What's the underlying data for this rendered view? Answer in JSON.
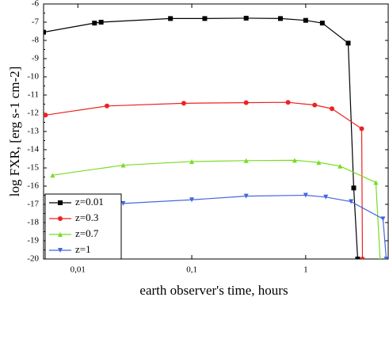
{
  "chart_data": {
    "type": "line",
    "xlabel": "earth observer's time, hours",
    "ylabel": "log FXR, [erg s-1 cm-2]",
    "xscale": "log",
    "xlim": [
      0.005,
      5.3
    ],
    "ylim": [
      -20,
      -6
    ],
    "xticks": [
      {
        "value": 0.01,
        "label": "0,01"
      },
      {
        "value": 0.1,
        "label": "0,1"
      },
      {
        "value": 1,
        "label": "1"
      }
    ],
    "yticks": [
      -6,
      -7,
      -8,
      -9,
      -10,
      -11,
      -12,
      -13,
      -14,
      -15,
      -16,
      -17,
      -18,
      -19,
      -20
    ],
    "legend": "lower left",
    "series": [
      {
        "name": "z=0.01",
        "color": "#000000",
        "marker": "square",
        "x": [
          0.005,
          0.014,
          0.016,
          0.065,
          0.13,
          0.3,
          0.6,
          1.0,
          1.4,
          2.36,
          2.64,
          2.86
        ],
        "values": [
          -7.55,
          -7.05,
          -7.0,
          -6.8,
          -6.8,
          -6.78,
          -6.8,
          -6.9,
          -7.05,
          -8.15,
          -16.1,
          -20
        ]
      },
      {
        "name": "z=0.3",
        "color": "#ee2222",
        "marker": "circle",
        "x": [
          0.0052,
          0.018,
          0.085,
          0.3,
          0.7,
          1.2,
          1.7,
          3.1,
          3.15
        ],
        "values": [
          -12.1,
          -11.6,
          -11.45,
          -11.42,
          -11.4,
          -11.55,
          -11.75,
          -12.85,
          -20
        ]
      },
      {
        "name": "z=0.7",
        "color": "#77dd22",
        "marker": "triangle-up",
        "x": [
          0.006,
          0.025,
          0.1,
          0.3,
          0.8,
          1.3,
          2.0,
          4.13,
          4.5
        ],
        "values": [
          -15.4,
          -14.85,
          -14.65,
          -14.6,
          -14.58,
          -14.7,
          -14.9,
          -15.8,
          -20
        ]
      },
      {
        "name": "z=1",
        "color": "#4466dd",
        "marker": "triangle-down",
        "x": [
          0.025,
          0.1,
          0.3,
          1.0,
          1.5,
          2.5,
          4.77,
          5.1
        ],
        "values": [
          -16.95,
          -16.75,
          -16.55,
          -16.5,
          -16.6,
          -16.85,
          -17.8,
          -20
        ]
      }
    ]
  }
}
